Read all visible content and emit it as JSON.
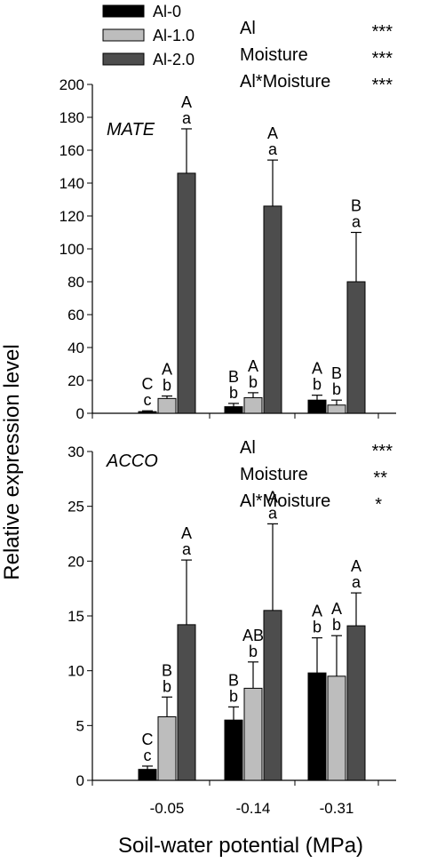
{
  "legend": [
    {
      "label": "Al-0",
      "color": "#000000"
    },
    {
      "label": "Al-1.0",
      "color": "#bdbdbd"
    },
    {
      "label": "Al-2.0",
      "color": "#4d4d4d"
    }
  ],
  "ylabel": "Relative expression level",
  "xlabel": "Soil-water potential (MPa)",
  "categories": [
    "-0.05",
    "-0.14",
    "-0.31"
  ],
  "chart_data": [
    {
      "type": "bar",
      "panel_label": "MATE",
      "categories": [
        "-0.05",
        "-0.14",
        "-0.31"
      ],
      "ylim": [
        0,
        200
      ],
      "yticks": [
        "0",
        "20",
        "40",
        "60",
        "80",
        "100",
        "120",
        "140",
        "160",
        "180",
        "200"
      ],
      "series": [
        {
          "name": "Al-0",
          "values": [
            1,
            4,
            8
          ],
          "errors": [
            0.5,
            2,
            3
          ]
        },
        {
          "name": "Al-1.0",
          "values": [
            9,
            9.5,
            5
          ],
          "errors": [
            1.5,
            3,
            3
          ]
        },
        {
          "name": "Al-2.0",
          "values": [
            146,
            126,
            80
          ],
          "errors": [
            27,
            28,
            30
          ]
        }
      ],
      "letters": [
        [
          "C\nc",
          "A\nb",
          "A\na"
        ],
        [
          "B\nb",
          "A\nb",
          "A\na"
        ],
        [
          "A\nb",
          "B\nb",
          "B\na"
        ]
      ],
      "stats": [
        {
          "term": "Al",
          "sig": "***"
        },
        {
          "term": "Moisture",
          "sig": "***"
        },
        {
          "term": "Al*Moisture",
          "sig": "***"
        }
      ]
    },
    {
      "type": "bar",
      "panel_label": "ACCO",
      "categories": [
        "-0.05",
        "-0.14",
        "-0.31"
      ],
      "ylim": [
        0,
        30
      ],
      "yticks": [
        "0",
        "5",
        "10",
        "15",
        "20",
        "25",
        "30"
      ],
      "series": [
        {
          "name": "Al-0",
          "values": [
            1,
            5.5,
            9.8
          ],
          "errors": [
            0.3,
            1.2,
            3.2
          ]
        },
        {
          "name": "Al-1.0",
          "values": [
            5.8,
            8.4,
            9.5
          ],
          "errors": [
            1.8,
            2.4,
            3.7
          ]
        },
        {
          "name": "Al-2.0",
          "values": [
            14.2,
            15.5,
            14.1
          ],
          "errors": [
            5.9,
            7.9,
            3.0
          ]
        }
      ],
      "letters": [
        [
          "C\nc",
          "B\nb",
          "A\na"
        ],
        [
          "B\nb",
          "AB\nb",
          "A\na"
        ],
        [
          "A\nb",
          "A\nb",
          "A\na"
        ]
      ],
      "stats": [
        {
          "term": "Al",
          "sig": "***"
        },
        {
          "term": "Moisture",
          "sig": "**"
        },
        {
          "term": "Al*Moisture",
          "sig": "*"
        }
      ]
    }
  ]
}
